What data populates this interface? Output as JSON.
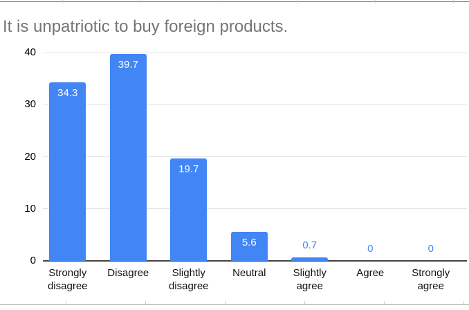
{
  "chart_data": {
    "type": "bar",
    "title": "It is unpatriotic to buy foreign products.",
    "categories": [
      "Strongly disagree",
      "Disagree",
      "Slightly disagree",
      "Neutral",
      "Slightly agree",
      "Agree",
      "Strongly agree"
    ],
    "category_display": [
      "Strongly\ndisagree",
      "Disagree",
      "Slightly\ndisagree",
      "Neutral",
      "Slightly\nagree",
      "Agree",
      "Strongly\nagree"
    ],
    "values": [
      34.3,
      39.7,
      19.7,
      5.6,
      0.7,
      0,
      0
    ],
    "value_labels": [
      "34.3",
      "39.7",
      "19.7",
      "5.6",
      "0.7",
      "0",
      "0"
    ],
    "xlabel": "",
    "ylabel": "",
    "ylim": [
      0,
      40
    ],
    "yticks": [
      0,
      10,
      20,
      30,
      40
    ],
    "grid": true,
    "legend": "none",
    "colors": {
      "bar": "#4285f4",
      "value_label_inside": "#ffffff",
      "value_label_outside": "#4285f4",
      "title": "#757575",
      "gridline": "#e3e3e3",
      "axis_baseline": "#424242",
      "tick_text": "#000000"
    }
  }
}
